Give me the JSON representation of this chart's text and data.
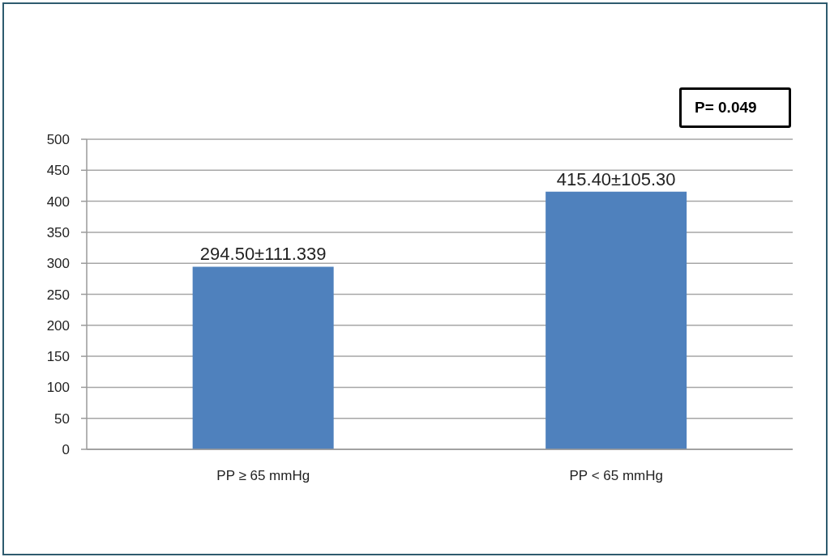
{
  "chart_data": {
    "type": "bar",
    "categories": [
      "PP  ≥ 65 mmHg",
      "PP  < 65 mmHg"
    ],
    "values": [
      294.5,
      415.4
    ],
    "value_labels": [
      "294.50±111.339",
      "415.40±105.30"
    ],
    "color": "#4f81bd",
    "ylim": [
      0,
      500
    ],
    "yticks": [
      0,
      50,
      100,
      150,
      200,
      250,
      300,
      350,
      400,
      450,
      500
    ],
    "grid": "y",
    "annotations": [
      "P= 0.049"
    ]
  }
}
